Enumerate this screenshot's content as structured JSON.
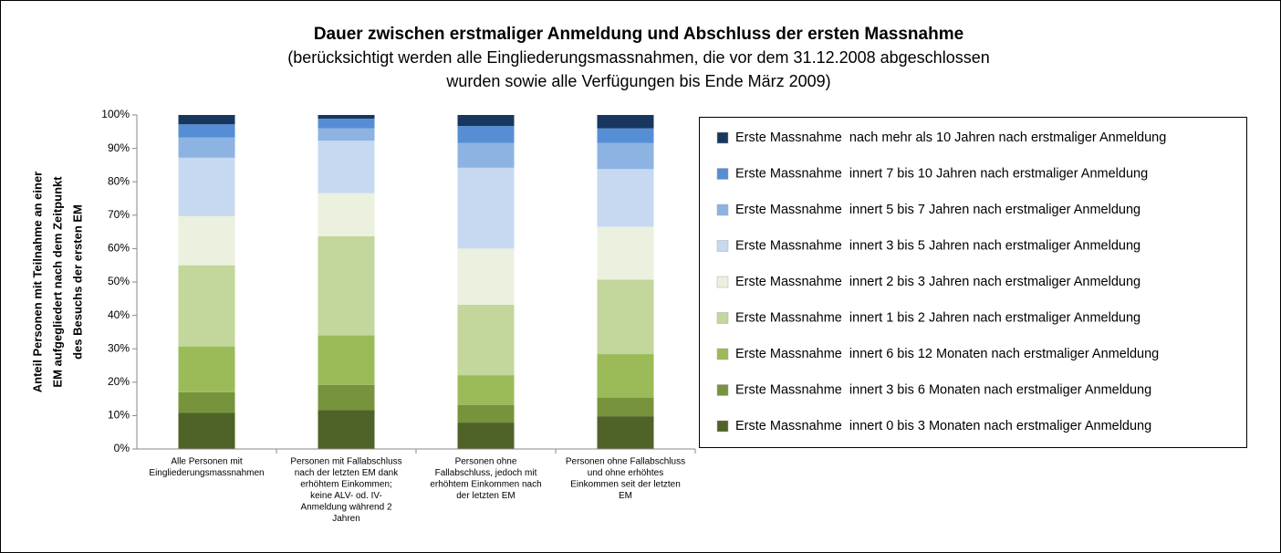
{
  "chart_data": {
    "type": "stacked_bar_100",
    "title": "Dauer zwischen erstmaliger Anmeldung und Abschluss der ersten Massnahme",
    "subtitle": [
      "(berücksichtigt werden alle Eingliederungsmassnahmen, die vor dem 31.12.2008 abgeschlossen",
      "wurden sowie alle Verfügungen bis Ende März 2009)"
    ],
    "ylabel": [
      "Anteil Personen mit Teilnahme an einer",
      "EM aufgegliedert  nach dem Zeitpunkt",
      "des Besuchs  der ersten EM"
    ],
    "categories": [
      [
        "Alle Personen mit",
        "Eingliederungsmassnahmen"
      ],
      [
        "Personen mit Fallabschluss",
        "nach der letzten EM dank",
        "erhöhtem Einkommen;",
        "keine ALV- od. IV-",
        "Anmeldung während 2",
        "Jahren"
      ],
      [
        "Personen ohne",
        "Fallabschluss, jedoch mit",
        "erhöhtem Einkommen nach",
        "der letzten EM"
      ],
      [
        "Personen ohne Fallabschluss",
        "und ohne erhöhtes",
        "Einkommen seit der letzten",
        "EM"
      ]
    ],
    "series": [
      {
        "name": "Erste Massnahme  innert 0 bis 3 Monaten nach erstmaliger Anmeldung",
        "color": "#4f6228",
        "values": [
          10.8,
          11.6,
          7.9,
          9.8
        ]
      },
      {
        "name": "Erste Massnahme  innert 3 bis 6 Monaten nach erstmaliger Anmeldung",
        "color": "#77933c",
        "values": [
          6.2,
          7.6,
          5.3,
          5.6
        ]
      },
      {
        "name": "Erste Massnahme  innert 6 bis 12 Monaten nach erstmaliger Anmeldung",
        "color": "#9bbb59",
        "values": [
          13.7,
          14.8,
          8.9,
          13
        ]
      },
      {
        "name": "Erste Massnahme  innert 1 bis 2 Jahren nach erstmaliger Anmeldung",
        "color": "#c3d69b",
        "values": [
          24.3,
          29.7,
          21.1,
          22.3
        ]
      },
      {
        "name": "Erste Massnahme  innert 2 bis 3 Jahren nach erstmaliger Anmeldung",
        "color": "#ebf1de",
        "values": [
          14.7,
          12.9,
          16.8,
          15.8
        ]
      },
      {
        "name": "Erste Massnahme  innert 3 bis 5 Jahren nach erstmaliger Anmeldung",
        "color": "#c6d9f1",
        "values": [
          17.5,
          15.7,
          24.2,
          17.3
        ]
      },
      {
        "name": "Erste Massnahme  innert 5 bis 7 Jahren nach erstmaliger Anmeldung",
        "color": "#8db3e2",
        "values": [
          6.1,
          3.7,
          7.4,
          7.8
        ]
      },
      {
        "name": "Erste Massnahme  innert 7 bis 10 Jahren nach erstmaliger Anmeldung",
        "color": "#558ed5",
        "values": [
          3.9,
          2.9,
          5.1,
          4.4
        ]
      },
      {
        "name": "Erste Massnahme  nach mehr als 10 Jahren nach erstmaliger Anmeldung",
        "color": "#17375e",
        "values": [
          2.8,
          1.1,
          3.3,
          4
        ]
      }
    ],
    "ylim": [
      0,
      100
    ],
    "yticks": [
      {
        "value": 0,
        "label": "0%"
      },
      {
        "value": 10,
        "label": "10%"
      },
      {
        "value": 20,
        "label": "20%"
      },
      {
        "value": 30,
        "label": "30%"
      },
      {
        "value": 40,
        "label": "40%"
      },
      {
        "value": 50,
        "label": "50%"
      },
      {
        "value": 60,
        "label": "60%"
      },
      {
        "value": 70,
        "label": "70%"
      },
      {
        "value": 80,
        "label": "80%"
      },
      {
        "value": 90,
        "label": "90%"
      },
      {
        "value": 100,
        "label": "100%"
      }
    ],
    "legend": "right"
  }
}
